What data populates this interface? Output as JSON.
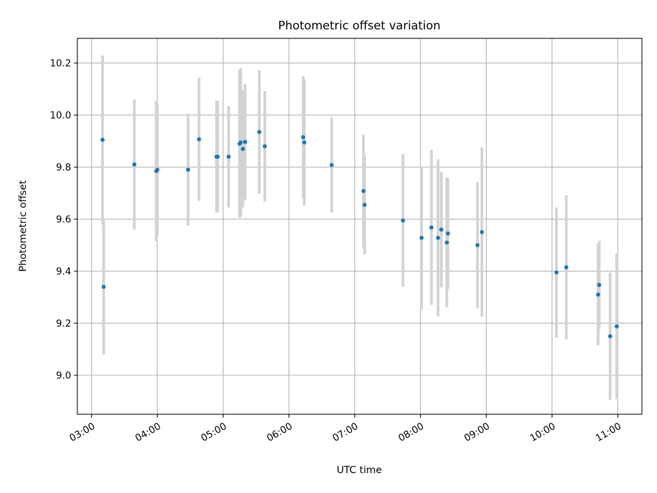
{
  "chart_data": {
    "type": "scatter",
    "title": "Photometric offset variation",
    "xlabel": "UTC time",
    "ylabel": "Photometric offset",
    "x_unit": "UTC hours",
    "xlim": [
      "02:47",
      "11:22"
    ],
    "ylim": [
      8.85,
      10.295
    ],
    "xticks": [
      "03:00",
      "04:00",
      "05:00",
      "06:00",
      "07:00",
      "08:00",
      "09:00",
      "10:00",
      "11:00"
    ],
    "yticks": [
      "9.0",
      "9.2",
      "9.4",
      "9.6",
      "9.8",
      "10.0",
      "10.2"
    ],
    "grid": true,
    "legend": "none",
    "colors": {
      "points": "#1f77b4",
      "errorbars": "#d3d3d3",
      "grid": "#b0b0b0"
    },
    "series": [
      {
        "points": [
          {
            "x": "03:10",
            "y": 9.905,
            "err": 0.325
          },
          {
            "x": "03:11",
            "y": 9.34,
            "err": 0.26
          },
          {
            "x": "03:39",
            "y": 9.81,
            "err": 0.25
          },
          {
            "x": "03:59",
            "y": 9.785,
            "err": 0.27
          },
          {
            "x": "04:00",
            "y": 9.79,
            "err": 0.255
          },
          {
            "x": "04:28",
            "y": 9.79,
            "err": 0.215
          },
          {
            "x": "04:38",
            "y": 9.907,
            "err": 0.237
          },
          {
            "x": "04:54",
            "y": 9.84,
            "err": 0.215
          },
          {
            "x": "04:55",
            "y": 9.84,
            "err": 0.215
          },
          {
            "x": "05:05",
            "y": 9.84,
            "err": 0.195
          },
          {
            "x": "05:15",
            "y": 9.89,
            "err": 0.285
          },
          {
            "x": "05:16",
            "y": 9.895,
            "err": 0.285
          },
          {
            "x": "05:18",
            "y": 9.87,
            "err": 0.225
          },
          {
            "x": "05:20",
            "y": 9.897,
            "err": 0.222
          },
          {
            "x": "05:33",
            "y": 9.935,
            "err": 0.237
          },
          {
            "x": "05:38",
            "y": 9.88,
            "err": 0.212
          },
          {
            "x": "06:13",
            "y": 9.915,
            "err": 0.235
          },
          {
            "x": "06:14",
            "y": 9.895,
            "err": 0.243
          },
          {
            "x": "06:39",
            "y": 9.808,
            "err": 0.183
          },
          {
            "x": "07:08",
            "y": 9.708,
            "err": 0.217
          },
          {
            "x": "07:09",
            "y": 9.655,
            "err": 0.19
          },
          {
            "x": "07:44",
            "y": 9.595,
            "err": 0.255
          },
          {
            "x": "08:01",
            "y": 9.528,
            "err": 0.275
          },
          {
            "x": "08:10",
            "y": 9.568,
            "err": 0.298
          },
          {
            "x": "08:16",
            "y": 9.528,
            "err": 0.302
          },
          {
            "x": "08:19",
            "y": 9.56,
            "err": 0.222
          },
          {
            "x": "08:24",
            "y": 9.51,
            "err": 0.25
          },
          {
            "x": "08:25",
            "y": 9.545,
            "err": 0.213
          },
          {
            "x": "08:52",
            "y": 9.5,
            "err": 0.243
          },
          {
            "x": "08:56",
            "y": 9.55,
            "err": 0.325
          },
          {
            "x": "10:04",
            "y": 9.395,
            "err": 0.25
          },
          {
            "x": "10:13",
            "y": 9.415,
            "err": 0.277
          },
          {
            "x": "10:42",
            "y": 9.31,
            "err": 0.195
          },
          {
            "x": "10:43",
            "y": 9.347,
            "err": 0.17
          },
          {
            "x": "10:53",
            "y": 9.15,
            "err": 0.245
          },
          {
            "x": "10:59",
            "y": 9.188,
            "err": 0.28
          }
        ]
      }
    ]
  }
}
